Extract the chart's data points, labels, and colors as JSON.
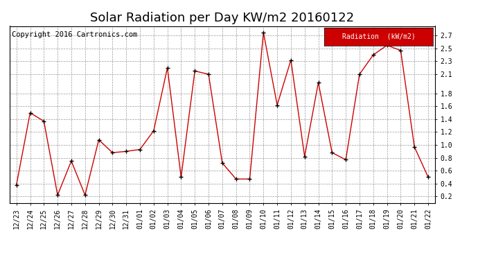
{
  "title": "Solar Radiation per Day KW/m2 20160122",
  "copyright": "Copyright 2016 Cartronics.com",
  "legend_label": "Radiation  (kW/m2)",
  "dates": [
    "12/23",
    "12/24",
    "12/25",
    "12/26",
    "12/27",
    "12/28",
    "12/29",
    "12/30",
    "12/31",
    "01/01",
    "01/02",
    "01/03",
    "01/04",
    "01/05",
    "01/06",
    "01/07",
    "01/08",
    "01/09",
    "01/10",
    "01/11",
    "01/12",
    "01/13",
    "01/14",
    "01/15",
    "01/16",
    "01/17",
    "01/18",
    "01/19",
    "01/20",
    "01/21",
    "01/22"
  ],
  "values": [
    0.38,
    1.5,
    1.37,
    0.22,
    0.75,
    0.22,
    1.08,
    0.88,
    0.9,
    0.93,
    1.22,
    2.2,
    0.5,
    2.15,
    2.1,
    0.72,
    0.47,
    0.47,
    2.75,
    1.62,
    2.32,
    0.82,
    1.97,
    0.88,
    0.77,
    2.1,
    2.4,
    2.55,
    2.47,
    0.97,
    0.5
  ],
  "ylim": [
    0.1,
    2.85
  ],
  "yticks": [
    0.2,
    0.4,
    0.6,
    0.8,
    1.0,
    1.2,
    1.4,
    1.6,
    1.8,
    2.1,
    2.3,
    2.5,
    2.7
  ],
  "line_color": "#cc0000",
  "marker_color": "#000000",
  "bg_color": "#ffffff",
  "grid_color": "#999999",
  "legend_bg": "#cc0000",
  "legend_text_color": "#ffffff",
  "title_fontsize": 13,
  "tick_fontsize": 7,
  "copyright_fontsize": 7.5
}
